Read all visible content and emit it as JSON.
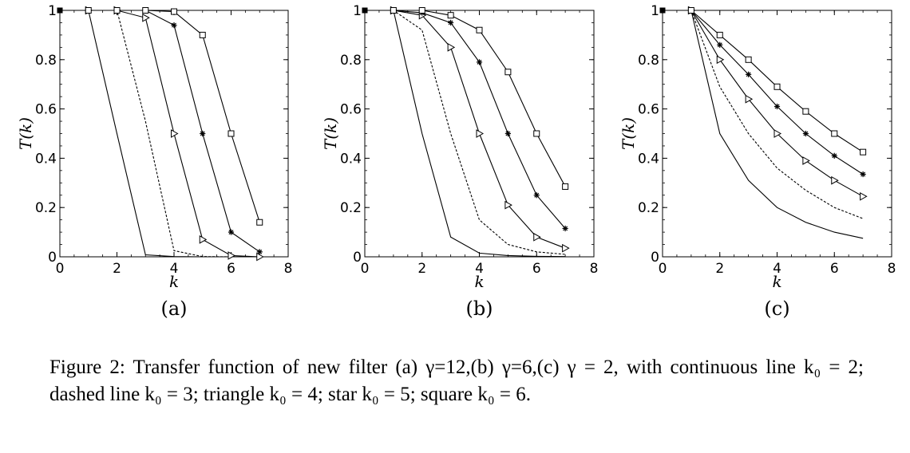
{
  "caption": "Figure 2: Transfer function of new filter (a) γ=12,(b) γ=6,(c) γ = 2, with continuous line k₀ = 2; dashed line k₀ = 3; triangle k₀ = 4; star k₀ = 5; square k₀ = 6.",
  "chart_data": [
    {
      "type": "line",
      "panel_label": "(a)",
      "xlabel": "k",
      "ylabel": "T(k)",
      "xlim": [
        0,
        8
      ],
      "ylim": [
        0,
        1
      ],
      "xticks": [
        "0",
        "2",
        "4",
        "6",
        "8"
      ],
      "yticks": [
        "0",
        "0.2",
        "0.4",
        "0.6",
        "0.8",
        "1"
      ],
      "x": [
        0,
        1,
        2,
        3,
        4,
        5,
        6,
        7
      ],
      "series": [
        {
          "marker": "none",
          "style": "solid",
          "values": [
            1,
            1,
            0.5,
            0.008,
            0.001,
            0,
            0,
            0
          ]
        },
        {
          "marker": "none",
          "style": "dashed",
          "values": [
            1,
            1,
            1,
            0.55,
            0.025,
            0.001,
            0,
            0
          ]
        },
        {
          "marker": "triangle",
          "style": "solid",
          "values": [
            1,
            1,
            1,
            0.97,
            0.5,
            0.07,
            0.005,
            0
          ]
        },
        {
          "marker": "star",
          "style": "solid",
          "values": [
            1,
            1,
            1,
            1,
            0.94,
            0.5,
            0.1,
            0.02
          ]
        },
        {
          "marker": "square",
          "style": "solid",
          "values": [
            1,
            1,
            1,
            1,
            0.995,
            0.9,
            0.5,
            0.14
          ]
        }
      ]
    },
    {
      "type": "line",
      "panel_label": "(b)",
      "xlabel": "k",
      "ylabel": "T(k)",
      "xlim": [
        0,
        8
      ],
      "ylim": [
        0,
        1
      ],
      "xticks": [
        "0",
        "2",
        "4",
        "6",
        "8"
      ],
      "yticks": [
        "0",
        "0.2",
        "0.4",
        "0.6",
        "0.8",
        "1"
      ],
      "x": [
        0,
        1,
        2,
        3,
        4,
        5,
        6,
        7
      ],
      "series": [
        {
          "marker": "none",
          "style": "solid",
          "values": [
            1,
            1,
            0.5,
            0.08,
            0.015,
            0.005,
            0.002,
            0.001
          ]
        },
        {
          "marker": "none",
          "style": "dashed",
          "values": [
            1,
            1,
            0.92,
            0.5,
            0.15,
            0.05,
            0.02,
            0.01
          ]
        },
        {
          "marker": "triangle",
          "style": "solid",
          "values": [
            1,
            1,
            0.98,
            0.85,
            0.5,
            0.21,
            0.08,
            0.035
          ]
        },
        {
          "marker": "star",
          "style": "solid",
          "values": [
            1,
            1,
            0.99,
            0.95,
            0.79,
            0.5,
            0.25,
            0.115
          ]
        },
        {
          "marker": "square",
          "style": "solid",
          "values": [
            1,
            1,
            1,
            0.98,
            0.92,
            0.75,
            0.5,
            0.285
          ]
        }
      ]
    },
    {
      "type": "line",
      "panel_label": "(c)",
      "xlabel": "k",
      "ylabel": "T(k)",
      "xlim": [
        0,
        8
      ],
      "ylim": [
        0,
        1
      ],
      "xticks": [
        "0",
        "2",
        "4",
        "6",
        "8"
      ],
      "yticks": [
        "0",
        "0.2",
        "0.4",
        "0.6",
        "0.8",
        "1"
      ],
      "x": [
        0,
        1,
        2,
        3,
        4,
        5,
        6,
        7
      ],
      "series": [
        {
          "marker": "none",
          "style": "solid",
          "values": [
            1,
            1,
            0.5,
            0.31,
            0.2,
            0.14,
            0.1,
            0.075
          ]
        },
        {
          "marker": "none",
          "style": "dashed",
          "values": [
            1,
            1,
            0.69,
            0.5,
            0.36,
            0.27,
            0.2,
            0.155
          ]
        },
        {
          "marker": "triangle",
          "style": "solid",
          "values": [
            1,
            1,
            0.8,
            0.64,
            0.5,
            0.39,
            0.31,
            0.245
          ]
        },
        {
          "marker": "star",
          "style": "solid",
          "values": [
            1,
            1,
            0.86,
            0.74,
            0.61,
            0.5,
            0.41,
            0.335
          ]
        },
        {
          "marker": "square",
          "style": "solid",
          "values": [
            1,
            1,
            0.9,
            0.8,
            0.69,
            0.59,
            0.5,
            0.425
          ]
        }
      ]
    }
  ]
}
